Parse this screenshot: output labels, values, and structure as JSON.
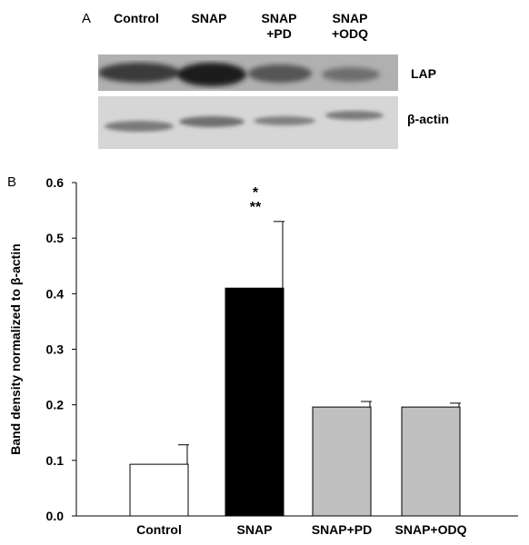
{
  "panel_a": {
    "letter": "A",
    "lanes": [
      "Control",
      "SNAP",
      "SNAP\n+PD",
      "SNAP\n+ODQ"
    ],
    "bands": [
      "LAP",
      "β-actin"
    ]
  },
  "panel_b": {
    "letter": "B"
  },
  "chart_data": {
    "type": "bar",
    "categories": [
      "Control",
      "SNAP",
      "SNAP+PD",
      "SNAP+ODQ"
    ],
    "values": [
      0.093,
      0.41,
      0.196,
      0.196
    ],
    "errors": [
      0.035,
      0.12,
      0.01,
      0.007
    ],
    "bar_colors": [
      "#ffffff",
      "#000000",
      "#c0c0c0",
      "#c0c0c0"
    ],
    "annotations": [
      {
        "category": "SNAP",
        "lines": [
          "*",
          "**"
        ]
      }
    ],
    "ylabel": "Band density normalized to β-actin",
    "xlabel": "",
    "ylim": [
      0,
      0.6
    ],
    "yticks": [
      "0.0",
      "0.1",
      "0.2",
      "0.3",
      "0.4",
      "0.5",
      "0.6"
    ],
    "grid": false
  }
}
